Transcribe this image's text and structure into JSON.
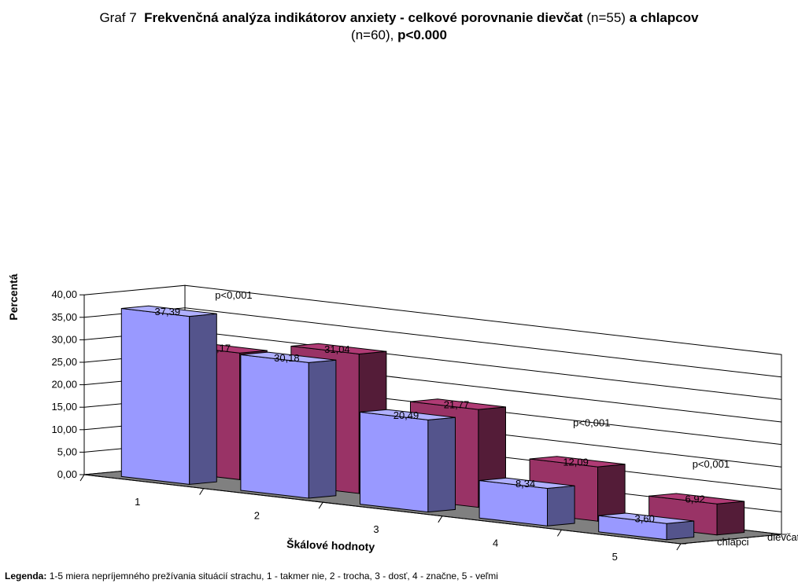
{
  "title": {
    "prefix": "Graf 7",
    "main_a": "Frekvenčná analýza indikátorov anxiety  - celkové porovnanie dievčat",
    "n_girls": "(n=55)",
    "main_b": "a chlapcov",
    "n_boys": "(n=60),",
    "pvalue": "p<0.000"
  },
  "legend_note": {
    "label": "Legenda:",
    "text": "1-5 miera nepríjemného prežívania situácií strachu, 1 - takmer nie, 2 - trocha, 3 - dosť, 4 - značne, 5 - veľmi"
  },
  "chart_data": {
    "type": "bar",
    "subtype": "3d-grouped-depth",
    "categories": [
      "1",
      "2",
      "3",
      "4",
      "5"
    ],
    "series": [
      {
        "name": "chlapci",
        "values": [
          37.39,
          30.18,
          20.49,
          8.34,
          3.6
        ],
        "labels": [
          "37,39",
          "30,18",
          "20,49",
          "8,34",
          "3,60"
        ],
        "color": "#9999ff"
      },
      {
        "name": "dievčatá",
        "values": [
          28.17,
          31.04,
          21.77,
          12.09,
          6.92
        ],
        "labels": [
          "28,17",
          "31,04",
          "21,77",
          "12,09",
          "6,92"
        ],
        "color": "#993366"
      }
    ],
    "ylim": [
      0,
      40
    ],
    "yticks": [
      "0,00",
      "5,00",
      "10,00",
      "15,00",
      "20,00",
      "25,00",
      "30,00",
      "35,00",
      "40,00"
    ],
    "xlabel": "Škálové hodnoty",
    "ylabel": "Percentá",
    "grid": true,
    "legend": "right, depth-axis labels",
    "annotations": [
      "p<0,001",
      "p<0,001",
      "p<0,001"
    ],
    "colors": {
      "wall": "#ffffff",
      "floor": "#808080",
      "grid": "#000000"
    }
  }
}
